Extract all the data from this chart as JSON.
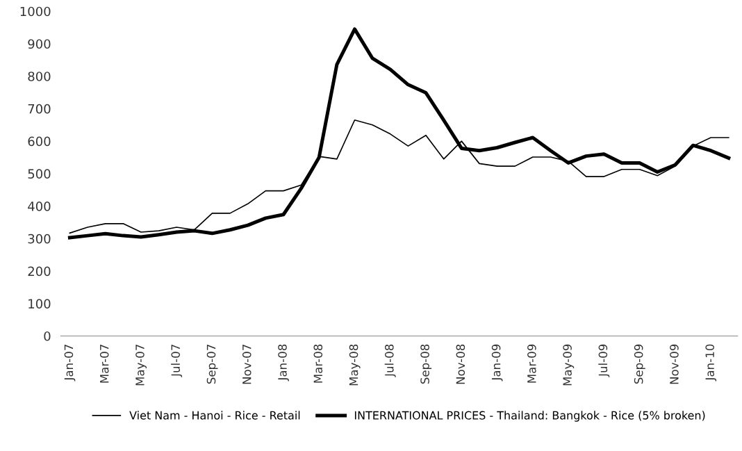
{
  "chart_data": {
    "type": "line",
    "categories": [
      "Jan-07",
      null,
      "Mar-07",
      null,
      "May-07",
      null,
      "Jul-07",
      null,
      "Sep-07",
      null,
      "Nov-07",
      null,
      "Jan-08",
      null,
      "Mar-08",
      null,
      "May-08",
      null,
      "Jul-08",
      null,
      "Sep-08",
      null,
      "Nov-08",
      null,
      "Jan-09",
      null,
      "Mar-09",
      null,
      "May-09",
      null,
      "Jul-09",
      null,
      "Sep-09",
      null,
      "Nov-09",
      null,
      "Jan-10",
      null
    ],
    "series": [
      {
        "name": "Viet Nam - Hanoi - Rice - Retail",
        "color": "#000000",
        "values": [
          317,
          335,
          346,
          346,
          320,
          324,
          335,
          327,
          378,
          378,
          407,
          447,
          447,
          465,
          553,
          545,
          665,
          650,
          622,
          585,
          618,
          545,
          600,
          531,
          523,
          523,
          551,
          551,
          538,
          491,
          491,
          513,
          513,
          494,
          523,
          585,
          611,
          611
        ]
      },
      {
        "name": "INTERNATIONAL PRICES - Thailand: Bangkok - Rice (5% broken)",
        "color": "#000000",
        "values": [
          303,
          309,
          315,
          309,
          305,
          312,
          320,
          324,
          316,
          327,
          341,
          363,
          374,
          455,
          550,
          836,
          945,
          855,
          821,
          774,
          749,
          665,
          578,
          571,
          580,
          596,
          611,
          571,
          533,
          554,
          560,
          533,
          533,
          505,
          527,
          587,
          571,
          548
        ]
      }
    ],
    "ylim": [
      0,
      1000
    ],
    "yticks": [
      0,
      100,
      200,
      300,
      400,
      500,
      600,
      700,
      800,
      900,
      1000
    ],
    "grid": false,
    "legend": "bottom",
    "marker": "none",
    "line_style": "solid"
  }
}
